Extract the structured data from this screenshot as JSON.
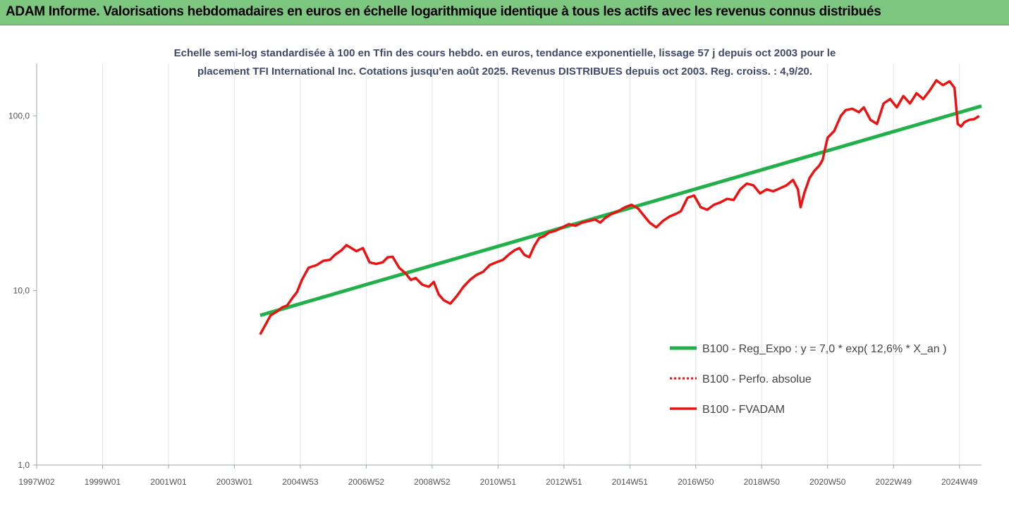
{
  "header": {
    "title": "ADAM Informe. Valorisations hebdomadaires en euros en échelle logarithmique identique à tous les actifs avec les revenus connus distribués"
  },
  "colors": {
    "title_bg": "#7dc67f",
    "corner": "#f0b400",
    "reg_line": "#22b04b",
    "fvadam_line": "#ee1111",
    "grid": "#dde6ee"
  },
  "chart_data": {
    "type": "line",
    "title_lines": [
      "Echelle semi-log standardisée à 100 en Tfin des cours hebdo. en euros, tendance exponentielle, lissage 57 j depuis oct 2003 pour le",
      "placement TFI International Inc. Cotations jusqu'en août 2025. Revenus DISTRIBUES depuis oct 2003. Reg. croiss. : 4,9/20."
    ],
    "y_scale": "log",
    "ylim": [
      1,
      200
    ],
    "y_ticks": [
      {
        "value": 1,
        "label": "1,0"
      },
      {
        "value": 10,
        "label": "10,0"
      },
      {
        "value": 100,
        "label": "100,0"
      }
    ],
    "xlim": [
      1997.0,
      2025.67
    ],
    "x_ticks": [
      {
        "value": 1997.0,
        "label": "1997W02"
      },
      {
        "value": 1999.0,
        "label": "1999W01"
      },
      {
        "value": 2001.0,
        "label": "2001W01"
      },
      {
        "value": 2003.0,
        "label": "2003W01"
      },
      {
        "value": 2005.0,
        "label": "2004W53"
      },
      {
        "value": 2007.0,
        "label": "2006W52"
      },
      {
        "value": 2009.0,
        "label": "2008W52"
      },
      {
        "value": 2011.0,
        "label": "2010W51"
      },
      {
        "value": 2013.0,
        "label": "2012W51"
      },
      {
        "value": 2015.0,
        "label": "2014W51"
      },
      {
        "value": 2017.0,
        "label": "2016W50"
      },
      {
        "value": 2019.0,
        "label": "2018W50"
      },
      {
        "value": 2021.0,
        "label": "2020W50"
      },
      {
        "value": 2023.0,
        "label": "2022W49"
      },
      {
        "value": 2025.0,
        "label": "2024W49"
      }
    ],
    "legend_position": "bottom-right",
    "series": [
      {
        "name": "B100 - Reg_Expo : y = 7,0 * exp( 12,6% *  X_an )",
        "style": "solid",
        "x": [
          2003.78,
          2025.67
        ],
        "y": [
          7.2,
          114.0
        ]
      },
      {
        "name": "B100 - Perfo. absolue",
        "style": "dotted",
        "x": [],
        "y": []
      },
      {
        "name": "B100 - FVADAM",
        "style": "solid",
        "x": [
          2003.78,
          2003.95,
          2004.1,
          2004.3,
          2004.45,
          2004.6,
          2004.75,
          2004.9,
          2005.05,
          2005.25,
          2005.5,
          2005.7,
          2005.9,
          2006.05,
          2006.25,
          2006.4,
          2006.55,
          2006.7,
          2006.9,
          2007.1,
          2007.3,
          2007.5,
          2007.65,
          2007.8,
          2008.0,
          2008.2,
          2008.35,
          2008.5,
          2008.7,
          2008.9,
          2009.05,
          2009.2,
          2009.35,
          2009.55,
          2009.75,
          2009.95,
          2010.15,
          2010.35,
          2010.55,
          2010.75,
          2010.95,
          2011.15,
          2011.35,
          2011.5,
          2011.65,
          2011.8,
          2011.95,
          2012.1,
          2012.25,
          2012.4,
          2012.55,
          2012.75,
          2012.95,
          2013.15,
          2013.35,
          2013.55,
          2013.75,
          2013.95,
          2014.1,
          2014.25,
          2014.45,
          2014.65,
          2014.85,
          2015.05,
          2015.25,
          2015.45,
          2015.6,
          2015.8,
          2016.0,
          2016.2,
          2016.4,
          2016.55,
          2016.75,
          2016.95,
          2017.15,
          2017.35,
          2017.55,
          2017.75,
          2017.95,
          2018.15,
          2018.35,
          2018.55,
          2018.75,
          2018.95,
          2019.15,
          2019.35,
          2019.55,
          2019.75,
          2019.95,
          2020.1,
          2020.18,
          2020.3,
          2020.45,
          2020.6,
          2020.75,
          2020.85,
          2021.0,
          2021.2,
          2021.4,
          2021.55,
          2021.75,
          2021.95,
          2022.1,
          2022.3,
          2022.5,
          2022.7,
          2022.9,
          2023.1,
          2023.3,
          2023.5,
          2023.7,
          2023.9,
          2024.1,
          2024.3,
          2024.5,
          2024.7,
          2024.85,
          2024.95,
          2025.05,
          2025.15,
          2025.3,
          2025.45,
          2025.6
        ],
        "y": [
          5.6,
          6.4,
          7.2,
          7.6,
          8.0,
          8.2,
          9.0,
          9.8,
          11.5,
          13.5,
          14.0,
          14.8,
          15.0,
          16.0,
          17.0,
          18.2,
          17.5,
          16.8,
          17.5,
          14.5,
          14.2,
          14.5,
          15.5,
          15.6,
          13.5,
          12.5,
          11.5,
          11.8,
          10.8,
          10.5,
          11.2,
          9.5,
          8.8,
          8.4,
          9.3,
          10.5,
          11.5,
          12.3,
          12.8,
          14.0,
          14.5,
          15.0,
          16.2,
          17.0,
          17.5,
          16.0,
          15.5,
          18.0,
          20.0,
          20.5,
          21.5,
          22.0,
          23.0,
          24.0,
          23.5,
          24.5,
          25.0,
          25.5,
          24.5,
          26.0,
          27.5,
          28.5,
          30.0,
          31.0,
          29.5,
          26.5,
          24.5,
          23.0,
          25.0,
          26.5,
          27.5,
          28.5,
          34.0,
          35.0,
          30.0,
          29.0,
          31.0,
          32.0,
          33.5,
          33.0,
          38.0,
          41.0,
          40.0,
          36.0,
          38.0,
          37.0,
          38.5,
          40.0,
          43.0,
          38.0,
          30.0,
          36.5,
          44.0,
          48.5,
          52.0,
          56.0,
          75.0,
          82.0,
          100.0,
          108.0,
          110.0,
          105.0,
          112.0,
          95.0,
          90.0,
          118.0,
          125.0,
          112.0,
          130.0,
          118.0,
          135.0,
          125.0,
          140.0,
          160.0,
          150.0,
          158.0,
          145.0,
          90.0,
          87.0,
          92.0,
          95.0,
          96.0,
          100.0
        ]
      }
    ]
  }
}
